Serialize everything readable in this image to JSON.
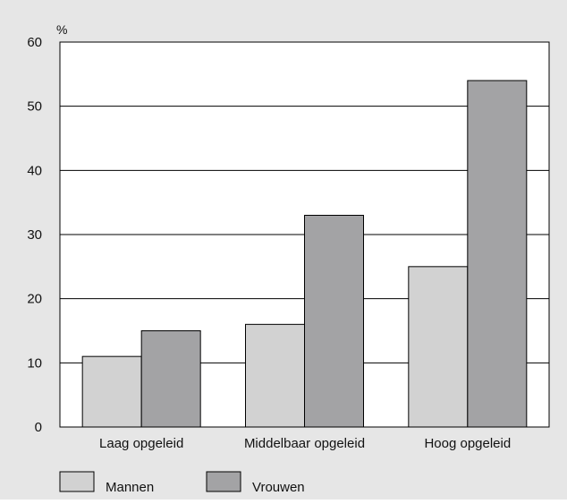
{
  "chart_data": {
    "type": "bar",
    "title": "",
    "xlabel": "",
    "ylabel": "%",
    "ylim": [
      0,
      60
    ],
    "yticks": [
      0,
      10,
      20,
      30,
      40,
      50,
      60
    ],
    "grid": true,
    "legend_position": "bottom-left",
    "categories": [
      "Laag opgeleid",
      "Middelbaar opgeleid",
      "Hoog opgeleid"
    ],
    "series": [
      {
        "name": "Mannen",
        "values": [
          11,
          16,
          25
        ],
        "color": "#d2d2d2"
      },
      {
        "name": "Vrouwen",
        "values": [
          15,
          33,
          54
        ],
        "color": "#a3a3a5"
      }
    ],
    "background_color": "#e6e6e6",
    "plot_background_color": "#ffffff"
  }
}
